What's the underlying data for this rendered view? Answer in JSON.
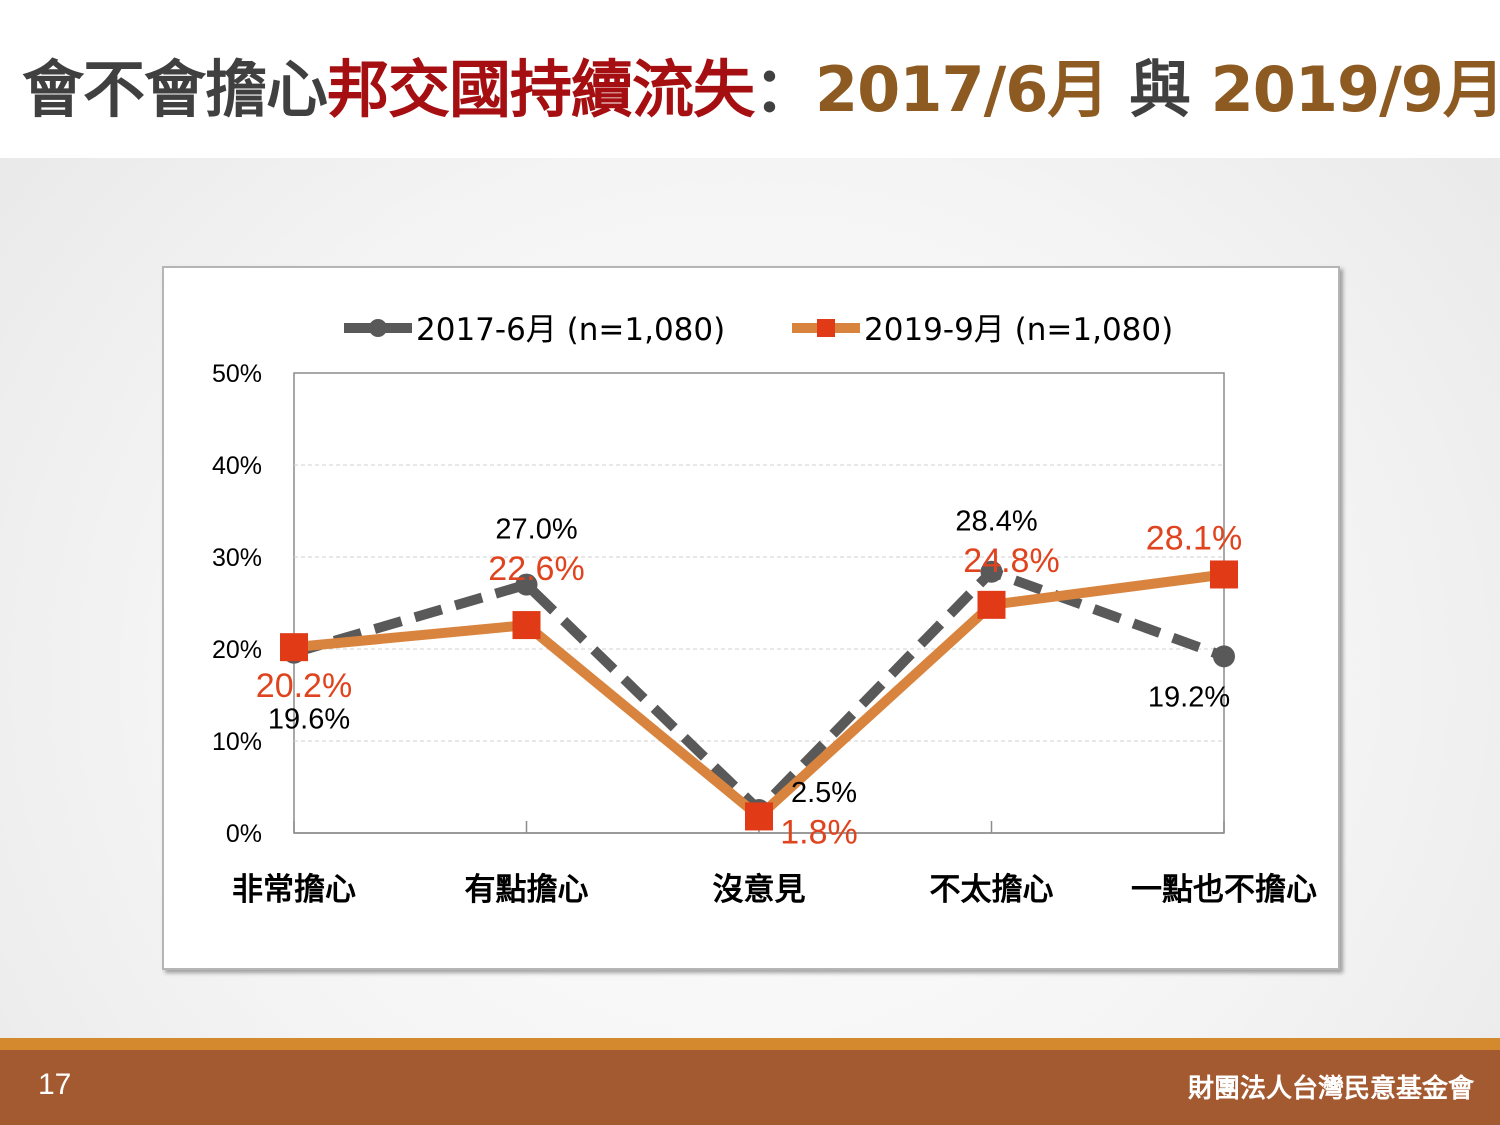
{
  "header": {
    "title_part1": "會不會擔心",
    "title_part2": "邦交國持續流失",
    "title_sep": "：",
    "title_part3": "2017/6月",
    "title_mid": " 與 ",
    "title_part4": "2019/9月"
  },
  "footer": {
    "page_number": "17",
    "organization": "財團法人台灣民意基金會"
  },
  "chart_data": {
    "type": "line",
    "categories": [
      "非常擔心",
      "有點擔心",
      "沒意見",
      "不太擔心",
      "一點也不擔心"
    ],
    "series": [
      {
        "name": "2017-6月 (n=1,080)",
        "values": [
          19.6,
          27.0,
          2.5,
          28.4,
          19.2
        ],
        "labels": [
          "19.6%",
          "27.0%",
          "2.5%",
          "28.4%",
          "19.2%"
        ],
        "color": "#595959",
        "style": "dashed",
        "marker": "circle"
      },
      {
        "name": "2019-9月 (n=1,080)",
        "values": [
          20.2,
          22.6,
          1.8,
          24.8,
          28.1
        ],
        "labels": [
          "20.2%",
          "22.6%",
          "1.8%",
          "24.8%",
          "28.1%"
        ],
        "color": "#d9843e",
        "marker_color": "#e03a17",
        "label_color": "#e0441f",
        "style": "solid",
        "marker": "square"
      }
    ],
    "yticks": [
      "0%",
      "10%",
      "20%",
      "30%",
      "40%",
      "50%"
    ],
    "ylim": [
      0,
      50
    ],
    "grid": true,
    "legend_position": "top"
  }
}
